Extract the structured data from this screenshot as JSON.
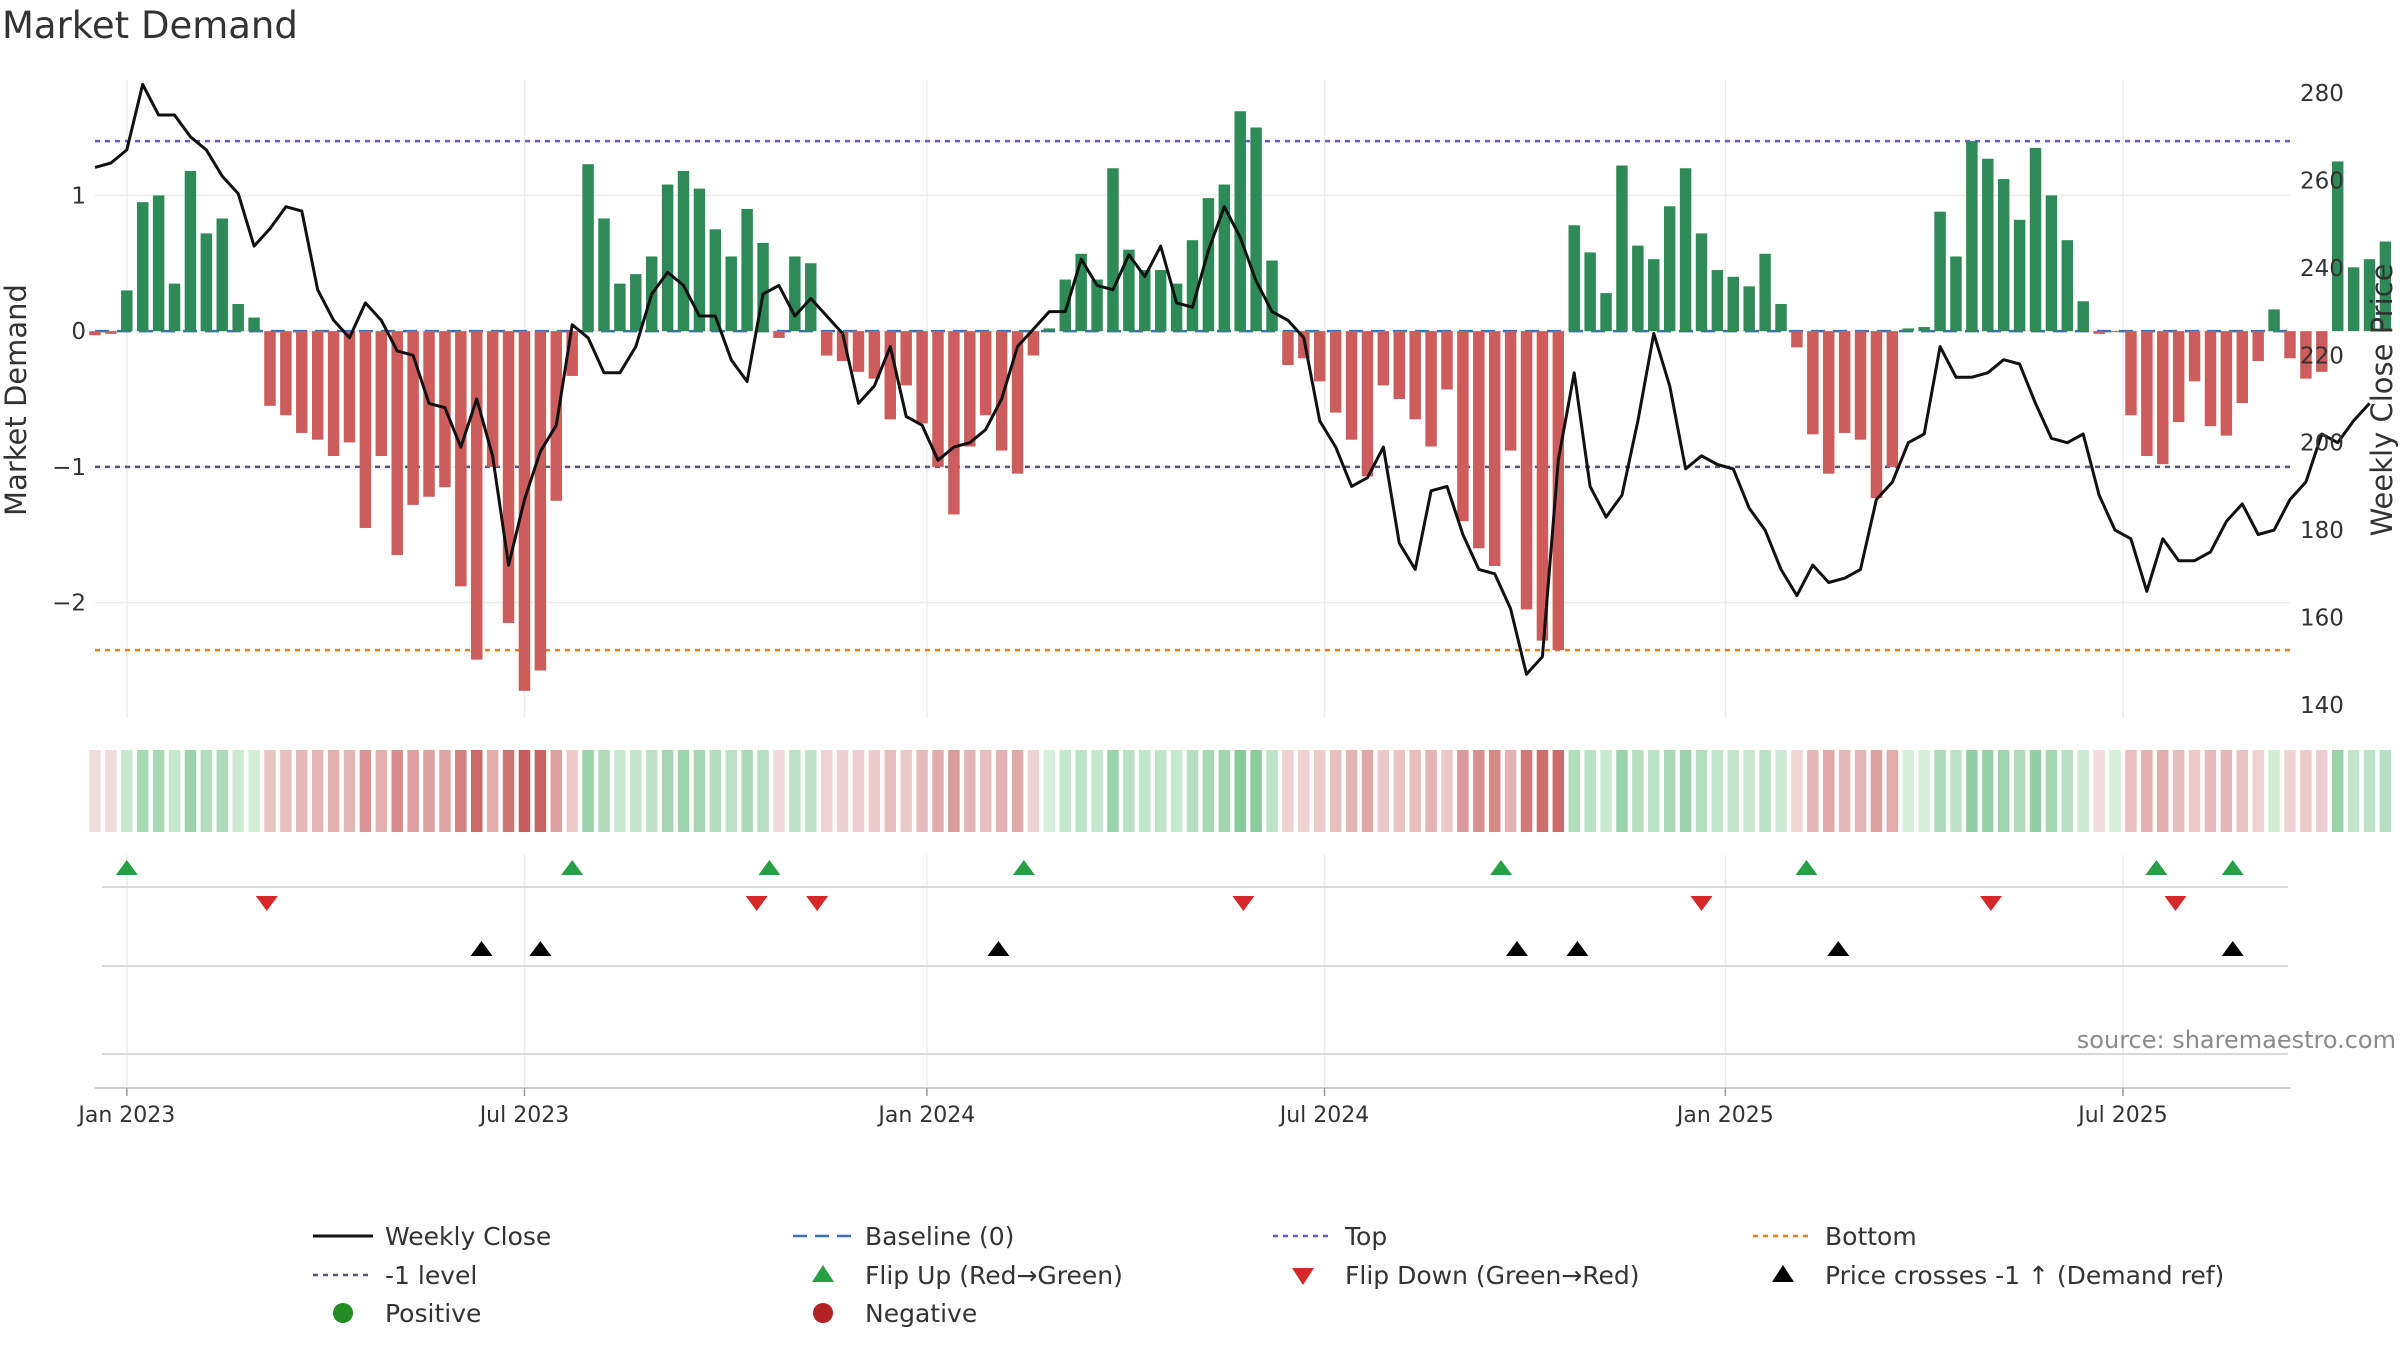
{
  "title": "Market Demand",
  "source": "source: sharemaestro.com",
  "chart_data": {
    "type": "bar+line",
    "title": "Market Demand",
    "ylabel_left": "Market Demand",
    "ylabel_right": "Weekly Close Price",
    "ylim_left": [
      -2.85,
      1.85
    ],
    "ylim_right": [
      137,
      283
    ],
    "yticks_left": [
      {
        "v": 1,
        "label": "1"
      },
      {
        "v": 0,
        "label": "0"
      },
      {
        "v": -1,
        "label": "−1"
      },
      {
        "v": -2,
        "label": "−2"
      }
    ],
    "yticks_right": [
      280,
      260,
      240,
      220,
      200,
      180,
      160,
      140
    ],
    "x_start_week": 0,
    "x_end_week": 138,
    "xticks": [
      {
        "week": 2,
        "label": "Jan 2023"
      },
      {
        "week": 27,
        "label": "Jul 2023"
      },
      {
        "week": 52.3,
        "label": "Jan 2024"
      },
      {
        "week": 77.3,
        "label": "Jul 2024"
      },
      {
        "week": 102.5,
        "label": "Jan 2025"
      },
      {
        "week": 127.5,
        "label": "Jul 2025"
      }
    ],
    "reference_lines": {
      "top": 1.4,
      "bottom": -2.35,
      "minus_one": -1,
      "baseline": 0
    },
    "demand": [
      -0.03,
      -0.02,
      0.3,
      0.95,
      1.0,
      0.35,
      1.18,
      0.72,
      0.83,
      0.2,
      0.1,
      -0.55,
      -0.62,
      -0.75,
      -0.8,
      -0.92,
      -0.82,
      -1.45,
      -0.92,
      -1.65,
      -1.28,
      -1.22,
      -1.15,
      -1.88,
      -2.42,
      -1.0,
      -2.15,
      -2.65,
      -2.5,
      -1.25,
      -0.33,
      1.23,
      0.83,
      0.35,
      0.42,
      0.55,
      1.08,
      1.18,
      1.05,
      0.75,
      0.55,
      0.9,
      0.65,
      -0.05,
      0.55,
      0.5,
      -0.18,
      -0.22,
      -0.3,
      -0.35,
      -0.65,
      -0.4,
      -0.68,
      -1.0,
      -1.35,
      -0.85,
      -0.62,
      -0.88,
      -1.05,
      -0.18,
      0.02,
      0.38,
      0.57,
      0.38,
      1.2,
      0.6,
      0.45,
      0.45,
      0.35,
      0.67,
      0.98,
      1.08,
      1.62,
      1.5,
      0.52,
      -0.25,
      -0.2,
      -0.37,
      -0.6,
      -0.8,
      -1.07,
      -0.4,
      -0.5,
      -0.65,
      -0.85,
      -0.43,
      -1.4,
      -1.6,
      -1.73,
      -0.88,
      -2.05,
      -2.28,
      -2.35,
      0.78,
      0.58,
      0.28,
      1.22,
      0.63,
      0.53,
      0.92,
      1.2,
      0.72,
      0.45,
      0.4,
      0.33,
      0.57,
      0.2,
      -0.12,
      -0.76,
      -1.05,
      -0.75,
      -0.8,
      -1.23,
      -1.0,
      0.02,
      0.03,
      0.88,
      0.55,
      1.4,
      1.27,
      1.12,
      0.82,
      1.35,
      1.0,
      0.67,
      0.22,
      -0.02,
      0.0,
      -0.62,
      -0.92,
      -0.98,
      -0.67,
      -0.37,
      -0.7,
      -0.77,
      -0.53,
      -0.22,
      0.16,
      -0.2,
      -0.35,
      -0.3,
      1.25,
      0.47,
      0.53,
      0.66
    ],
    "price": [
      263,
      264,
      267,
      282,
      275,
      275,
      270,
      267,
      261,
      257,
      245,
      249,
      254,
      253,
      235,
      228,
      224,
      232,
      228,
      221,
      220,
      209,
      208,
      199,
      210,
      197,
      172,
      187,
      198,
      204,
      227,
      224,
      216,
      216,
      222,
      234,
      239,
      236,
      229,
      229,
      219,
      214,
      234,
      236,
      229,
      233,
      229,
      225,
      209,
      213,
      222,
      206,
      204,
      196,
      199,
      200,
      203,
      210,
      222,
      226,
      230,
      230,
      242,
      236,
      235,
      243,
      238,
      245,
      232,
      231,
      244,
      254,
      247,
      237,
      230,
      228,
      224,
      205,
      199,
      190,
      192,
      199,
      177,
      171,
      189,
      190,
      179,
      171,
      170,
      162,
      147,
      151,
      196,
      216,
      190,
      183,
      188,
      205,
      225,
      213,
      194,
      197,
      195,
      194,
      185,
      180,
      171,
      165,
      172,
      168,
      169,
      171,
      187,
      191,
      200,
      202,
      222,
      215,
      215,
      216,
      219,
      218,
      209,
      201,
      200,
      202,
      188,
      180,
      178,
      166,
      178,
      173,
      173,
      175,
      182,
      186,
      179,
      180,
      187,
      191,
      202,
      200,
      205,
      209
    ],
    "flip_up_weeks": [
      2,
      30,
      42.4,
      58.4,
      88.4,
      107.6,
      129.6,
      134.4
    ],
    "flip_down_weeks": [
      10.8,
      41.6,
      45.4,
      72.2,
      101,
      119.2,
      130.8
    ],
    "price_cross_weeks": [
      24.3,
      28,
      56.8,
      89.4,
      93.2,
      109.6,
      134.4
    ],
    "legend": [
      {
        "label": "Weekly Close",
        "marker": "line-black"
      },
      {
        "label": "Baseline (0)",
        "marker": "dash-blue"
      },
      {
        "label": "Top",
        "marker": "dot-purple"
      },
      {
        "label": "Bottom",
        "marker": "dot-orange"
      },
      {
        "label": "-1 level",
        "marker": "dot-gray"
      },
      {
        "label": "Flip Up (Red→Green)",
        "marker": "triangle-up-green"
      },
      {
        "label": "Flip Down (Green→Red)",
        "marker": "triangle-down-red"
      },
      {
        "label": "Price crosses -1 ↑ (Demand ref)",
        "marker": "triangle-up-black"
      },
      {
        "label": "Positive",
        "marker": "circle-green"
      },
      {
        "label": "Negative",
        "marker": "circle-red"
      }
    ]
  },
  "colors": {
    "positive_bar": "#2e8b57",
    "negative_bar": "#cd5c5c",
    "top_line": "#6a5acd",
    "bottom_line": "#e67e22",
    "minus_one_line": "#555577",
    "baseline": "#3b6fb6",
    "flip_up": "#27a045",
    "flip_down": "#d62828",
    "price_line": "#111111",
    "positive_dot": "#238b23",
    "negative_dot": "#b22222"
  }
}
